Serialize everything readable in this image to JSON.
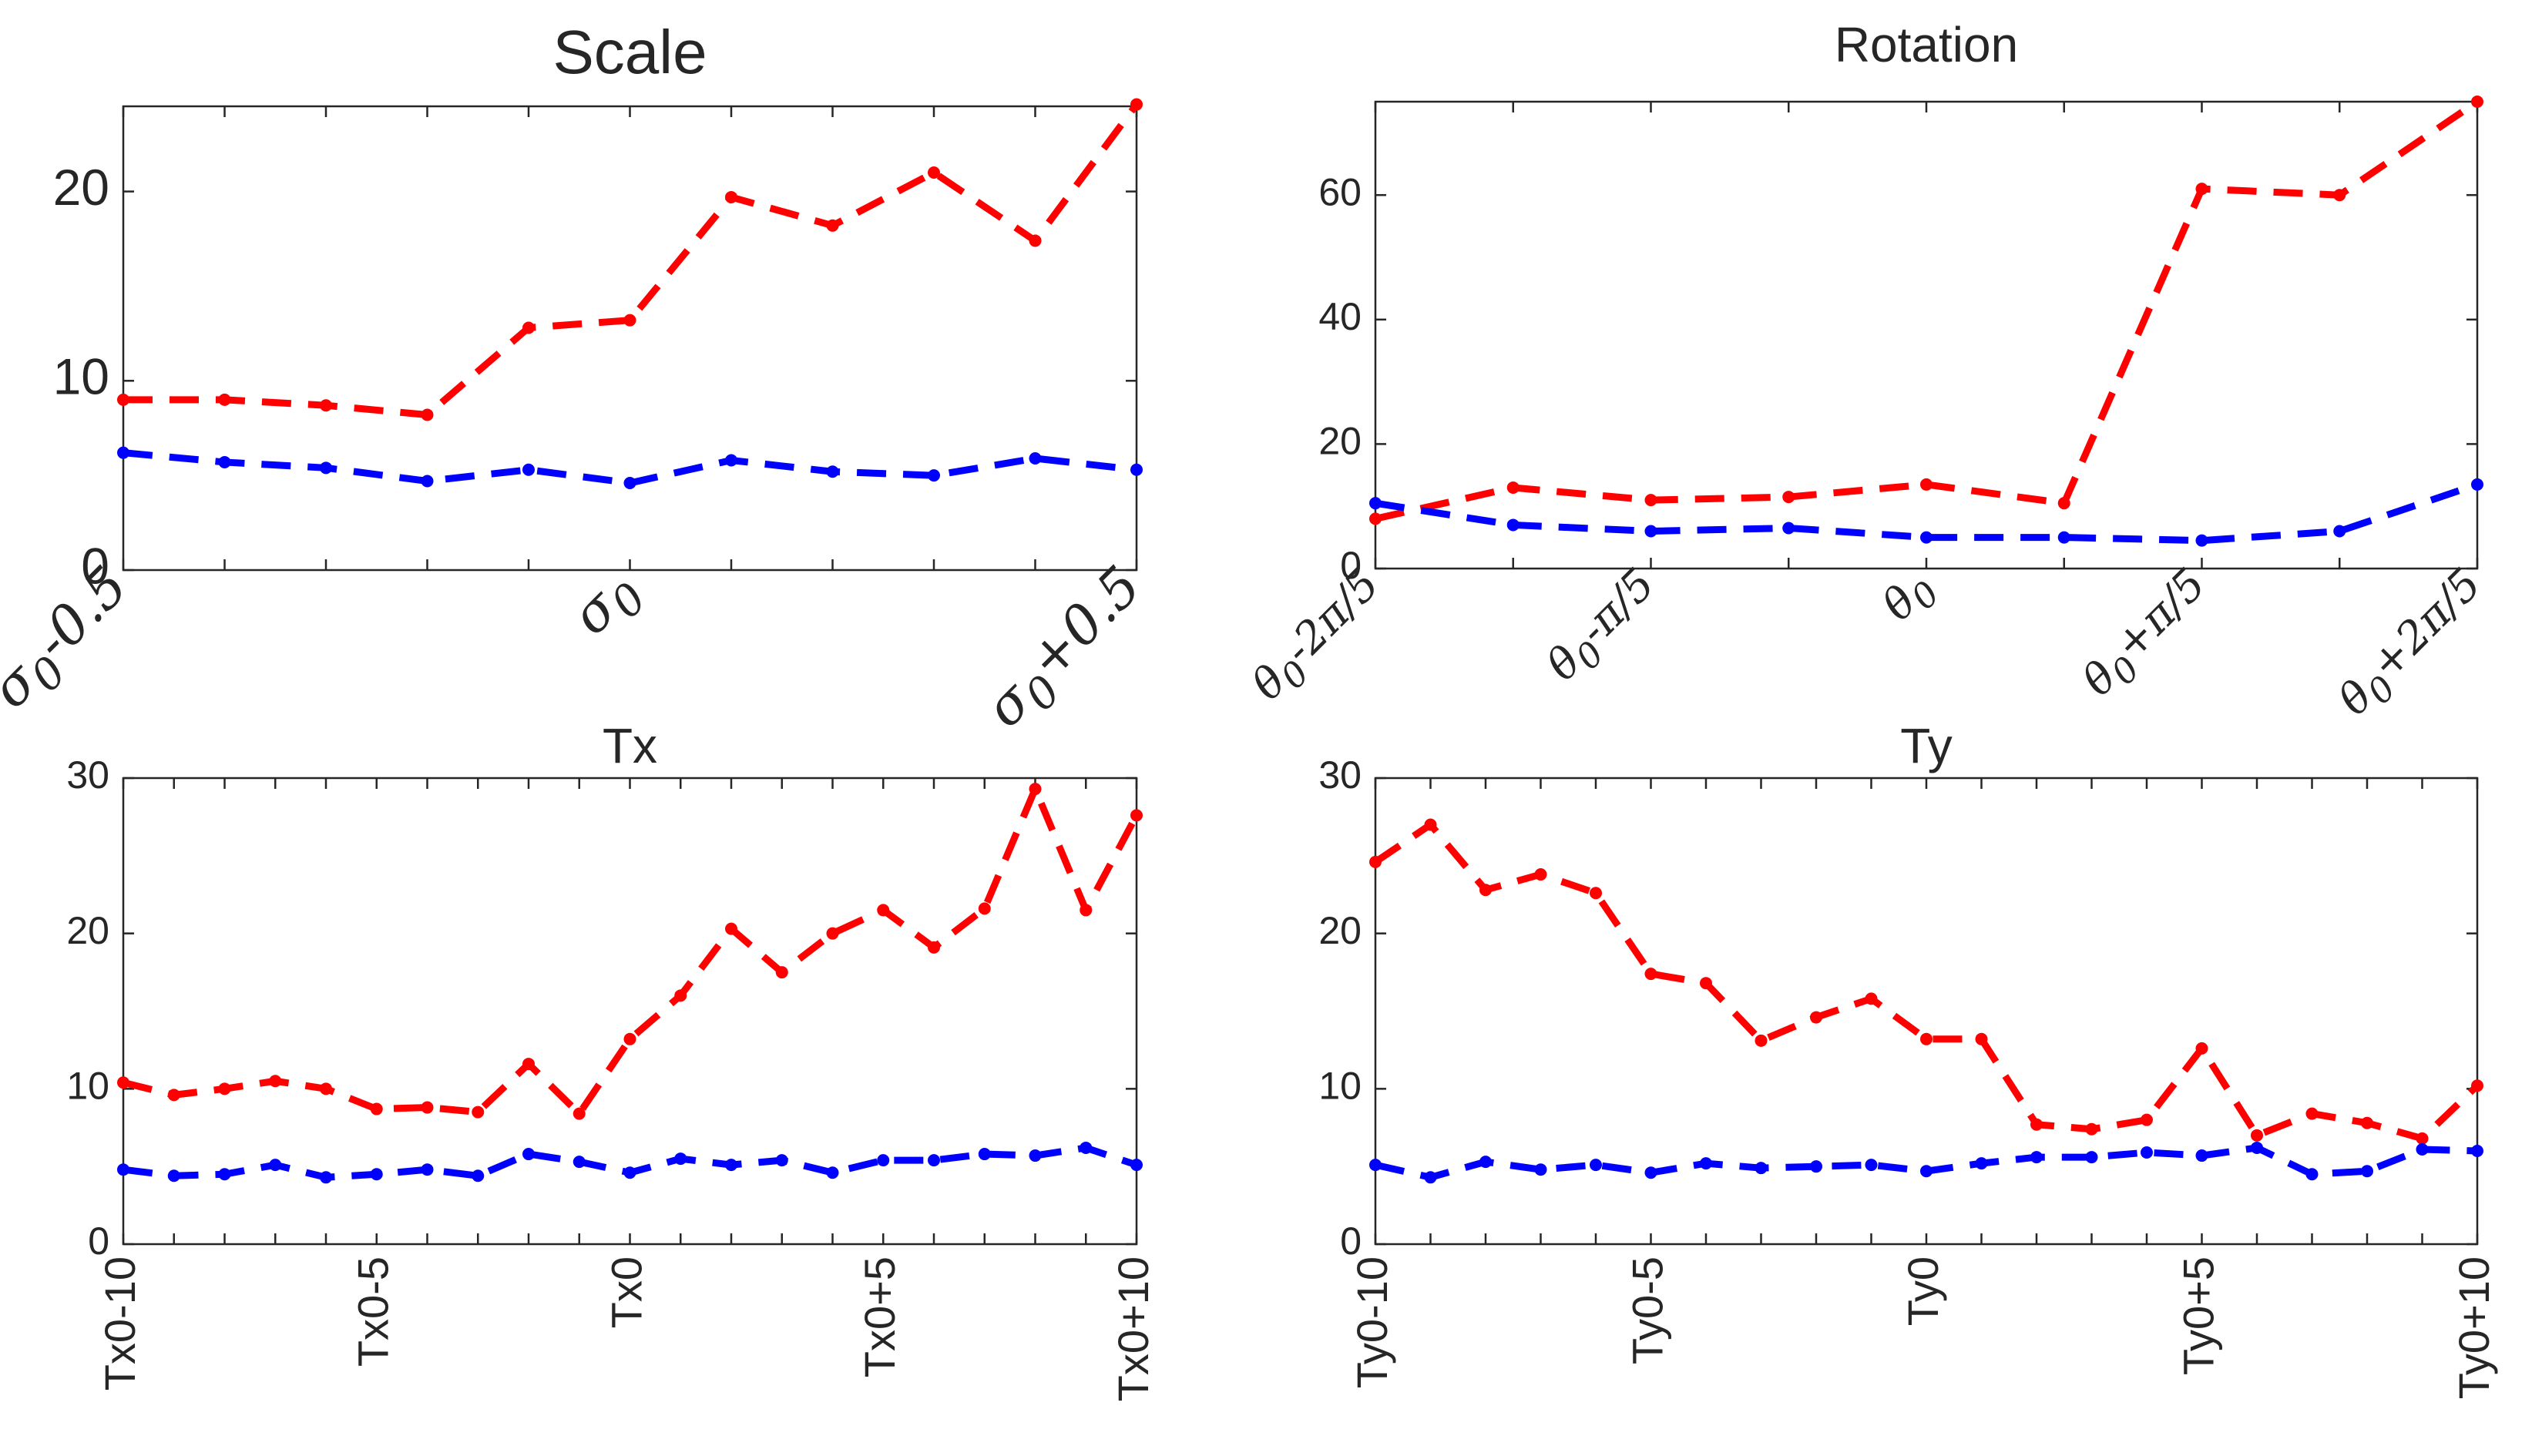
{
  "figure": {
    "colors": {
      "series_red": "#ff0000",
      "series_blue": "#0000ff",
      "axis": "#262626"
    }
  },
  "chart_data": [
    {
      "type": "line",
      "title": "Scale",
      "xlabel": "",
      "ylabel": "",
      "x": [
        0,
        1,
        2,
        3,
        4,
        5,
        6,
        7,
        8,
        9,
        10
      ],
      "xlim": [
        0,
        10
      ],
      "ylim": [
        0,
        24.5
      ],
      "yticks": [
        0,
        10,
        20
      ],
      "xticks": [
        0,
        5,
        10
      ],
      "xtick_labels": [
        "σ₀-0.5",
        "σ₀",
        "σ₀+0.5"
      ],
      "series": [
        {
          "name": "red-dashed",
          "color": "#ff0000",
          "style": "dashed",
          "values": [
            9.0,
            9.0,
            8.7,
            8.2,
            12.8,
            13.2,
            19.7,
            18.2,
            21.0,
            17.4,
            24.6
          ]
        },
        {
          "name": "blue-dashed",
          "color": "#0000ff",
          "style": "dashed",
          "values": [
            6.2,
            5.7,
            5.4,
            4.7,
            5.3,
            4.6,
            5.8,
            5.2,
            5.0,
            5.9,
            5.3
          ]
        }
      ]
    },
    {
      "type": "line",
      "title": "Rotation",
      "xlabel": "",
      "ylabel": "",
      "x": [
        0,
        1,
        2,
        3,
        4,
        5,
        6,
        7,
        8
      ],
      "xlim": [
        0,
        8
      ],
      "ylim": [
        0,
        75
      ],
      "yticks": [
        0,
        20,
        40,
        60
      ],
      "xticks": [
        0,
        2,
        4,
        6,
        8
      ],
      "xtick_labels": [
        "θ₀-2π/5",
        "θ₀-π/5",
        "θ₀",
        "θ₀+π/5",
        "θ₀+2π/5"
      ],
      "series": [
        {
          "name": "red-dashed",
          "color": "#ff0000",
          "style": "dashed",
          "values": [
            8.0,
            13.0,
            11.0,
            11.5,
            13.5,
            10.5,
            61.0,
            60.0,
            75.0
          ]
        },
        {
          "name": "blue-dashed",
          "color": "#0000ff",
          "style": "dashed",
          "values": [
            10.5,
            7.0,
            6.0,
            6.5,
            5.0,
            5.0,
            4.5,
            6.0,
            13.5
          ]
        }
      ]
    },
    {
      "type": "line",
      "title": "Tx",
      "xlabel": "",
      "ylabel": "",
      "x": [
        0,
        1,
        2,
        3,
        4,
        5,
        6,
        7,
        8,
        9,
        10,
        11,
        12,
        13,
        14,
        15,
        16,
        17,
        18,
        19,
        20
      ],
      "xlim": [
        0,
        20
      ],
      "ylim": [
        0,
        30
      ],
      "yticks": [
        0,
        10,
        20,
        30
      ],
      "xticks": [
        0,
        5,
        10,
        15,
        20
      ],
      "xtick_labels": [
        "Tx0-10",
        "Tx0-5",
        "Tx0",
        "Tx0+5",
        "Tx0+10"
      ],
      "series": [
        {
          "name": "red-dashed",
          "color": "#ff0000",
          "style": "dashed",
          "values": [
            10.4,
            9.6,
            10.0,
            10.5,
            10.0,
            8.7,
            8.8,
            8.5,
            11.6,
            8.4,
            13.2,
            16.0,
            20.3,
            17.5,
            20.0,
            21.5,
            19.1,
            21.6,
            29.3,
            21.5,
            27.6
          ]
        },
        {
          "name": "blue-dashed",
          "color": "#0000ff",
          "style": "dashed",
          "values": [
            4.8,
            4.4,
            4.5,
            5.1,
            4.3,
            4.5,
            4.8,
            4.4,
            5.8,
            5.3,
            4.6,
            5.5,
            5.1,
            5.4,
            4.6,
            5.4,
            5.4,
            5.8,
            5.7,
            6.2,
            5.1
          ]
        }
      ]
    },
    {
      "type": "line",
      "title": "Ty",
      "xlabel": "",
      "ylabel": "",
      "x": [
        0,
        1,
        2,
        3,
        4,
        5,
        6,
        7,
        8,
        9,
        10,
        11,
        12,
        13,
        14,
        15,
        16,
        17,
        18,
        19,
        20
      ],
      "xlim": [
        0,
        20
      ],
      "ylim": [
        0,
        30
      ],
      "yticks": [
        0,
        10,
        20,
        30
      ],
      "xticks": [
        0,
        5,
        10,
        15,
        20
      ],
      "xtick_labels": [
        "Ty0-10",
        "Ty0-5",
        "Ty0",
        "Ty0+5",
        "Ty0+10"
      ],
      "series": [
        {
          "name": "red-dashed",
          "color": "#ff0000",
          "style": "dashed",
          "values": [
            24.6,
            27.0,
            22.8,
            23.8,
            22.6,
            17.4,
            16.8,
            13.1,
            14.6,
            15.8,
            13.2,
            13.2,
            7.7,
            7.4,
            8.0,
            12.6,
            7.0,
            8.4,
            7.8,
            6.8,
            10.2
          ]
        },
        {
          "name": "blue-dashed",
          "color": "#0000ff",
          "style": "dashed",
          "values": [
            5.1,
            4.3,
            5.3,
            4.8,
            5.1,
            4.6,
            5.2,
            4.9,
            5.0,
            5.1,
            4.7,
            5.2,
            5.6,
            5.6,
            5.9,
            5.7,
            6.2,
            4.5,
            4.7,
            6.1,
            6.0
          ]
        }
      ]
    }
  ]
}
